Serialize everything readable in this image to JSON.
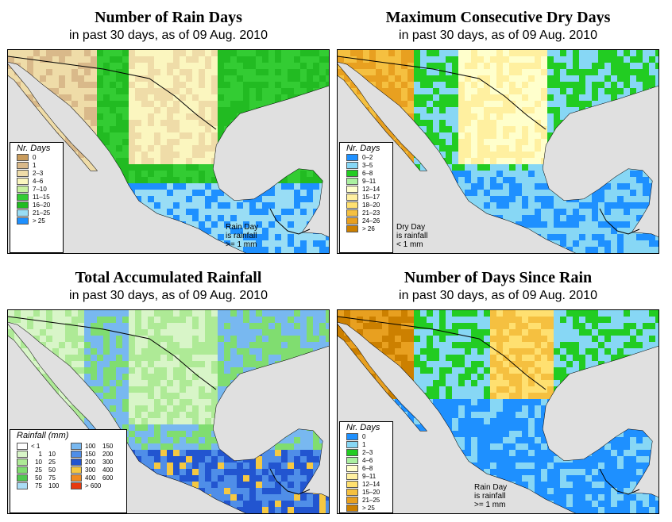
{
  "date_text": "in past 30 days, as of  09 Aug. 2010",
  "panels": [
    {
      "title": "Number of Rain Days",
      "legend_title": "Nr. Days",
      "legend": [
        {
          "label": "0",
          "color": "#c89b5c"
        },
        {
          "label": "1",
          "color": "#d9b98a"
        },
        {
          "label": "2–3",
          "color": "#efdca8"
        },
        {
          "label": "4–6",
          "color": "#fbf6bf"
        },
        {
          "label": "7–10",
          "color": "#c8f0a0"
        },
        {
          "label": "11–15",
          "color": "#33cc33"
        },
        {
          "label": "16–20",
          "color": "#22bb22"
        },
        {
          "label": "21–25",
          "color": "#99ddf5"
        },
        {
          "label": "> 25",
          "color": "#1e90ff"
        }
      ],
      "note": "Rain Day\nis rainfall\n>= 1 mm"
    },
    {
      "title": "Maximum Consecutive Dry Days",
      "legend_title": "Nr. Days",
      "legend": [
        {
          "label": "0–2",
          "color": "#1e90ff"
        },
        {
          "label": "3–5",
          "color": "#87d7f5"
        },
        {
          "label": "6–8",
          "color": "#22cc22"
        },
        {
          "label": "9–11",
          "color": "#aaf0a0"
        },
        {
          "label": "12–14",
          "color": "#ffffcc"
        },
        {
          "label": "15–17",
          "color": "#fff0a0"
        },
        {
          "label": "18–20",
          "color": "#ffe070"
        },
        {
          "label": "21–23",
          "color": "#f5c040"
        },
        {
          "label": "24–26",
          "color": "#e8a020"
        },
        {
          "label": "> 26",
          "color": "#cc8000"
        }
      ],
      "note": "Dry Day\nis rainfall\n< 1 mm"
    },
    {
      "title": "Total Accumulated Rainfall",
      "legend_title": "Rainfall (mm)",
      "rain_legend": [
        {
          "lo": "< 1",
          "hi": "",
          "color": "#ffffff"
        },
        {
          "lo": "1",
          "hi": "10",
          "color": "#d8f5c8"
        },
        {
          "lo": "10",
          "hi": "25",
          "color": "#aeea96"
        },
        {
          "lo": "25",
          "hi": "50",
          "color": "#80dd70"
        },
        {
          "lo": "50",
          "hi": "75",
          "color": "#50c850"
        },
        {
          "lo": "75",
          "hi": "100",
          "color": "#aadcf5"
        },
        {
          "lo": "100",
          "hi": "150",
          "color": "#78b8f0"
        },
        {
          "lo": "150",
          "hi": "200",
          "color": "#4f8ee8"
        },
        {
          "lo": "200",
          "hi": "300",
          "color": "#2255d0"
        },
        {
          "lo": "300",
          "hi": "400",
          "color": "#f5c842"
        },
        {
          "lo": "400",
          "hi": "600",
          "color": "#f08a20"
        },
        {
          "lo": "> 600",
          "hi": "",
          "color": "#e83a10"
        }
      ]
    },
    {
      "title": "Number of Days Since Rain",
      "legend_title": "Nr. Days",
      "legend": [
        {
          "label": "0",
          "color": "#1e90ff"
        },
        {
          "label": "1",
          "color": "#87d7f5"
        },
        {
          "label": "2–3",
          "color": "#22cc22"
        },
        {
          "label": "4–6",
          "color": "#aaf0a0"
        },
        {
          "label": "6–8",
          "color": "#ffffcc"
        },
        {
          "label": "9–11",
          "color": "#fff0a0"
        },
        {
          "label": "12–14",
          "color": "#ffe070"
        },
        {
          "label": "15–20",
          "color": "#f5c040"
        },
        {
          "label": "21–25",
          "color": "#e8a020"
        },
        {
          "label": "> 25",
          "color": "#cc8000"
        }
      ],
      "note": "Rain Day\nis rainfall\n>= 1 mm"
    }
  ],
  "map_colors": {
    "ocean": "#e0e0e0",
    "border": "#000000"
  }
}
